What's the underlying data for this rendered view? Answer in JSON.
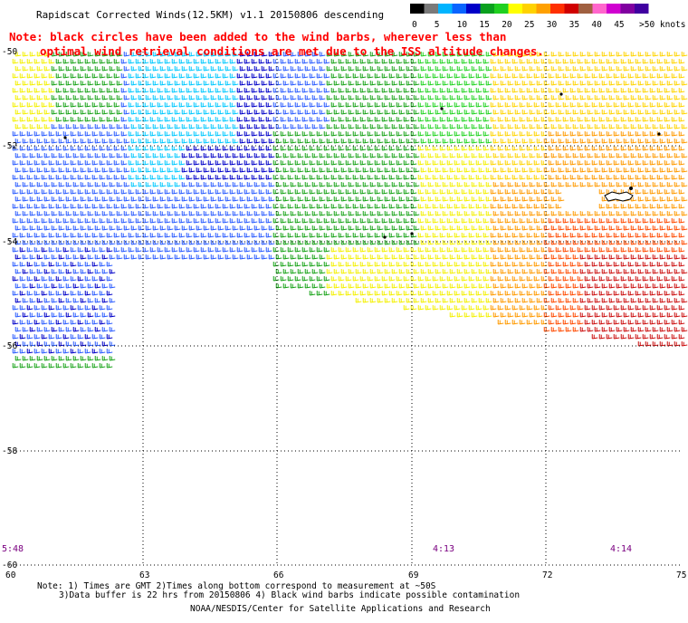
{
  "header": {
    "title": "Rapidscat Corrected Winds(12.5KM) v1.1 20150806 descending"
  },
  "legend": {
    "labels": [
      "0",
      "5",
      "10",
      "15",
      "20",
      "25",
      "30",
      "35",
      "40",
      "45",
      ">50 knots"
    ],
    "colors": [
      "#000000",
      "#7a7a7a",
      "#00b4ff",
      "#0a64ff",
      "#0000c8",
      "#0aa01e",
      "#20d020",
      "#ffff00",
      "#ffd200",
      "#ffa000",
      "#ff3000",
      "#d00000",
      "#a06040",
      "#ff66cc",
      "#d000d0",
      "#8000a0",
      "#4000a0"
    ]
  },
  "note": {
    "line1": "Note: black circles have been added to the wind barbs, wherever less than",
    "line2": "optimal wind retrieval conditions are met due to the ISS altitude changes."
  },
  "axes": {
    "lat_labels": [
      "-50",
      "-52",
      "-54",
      "-56",
      "-58",
      "-60"
    ],
    "lon_labels": [
      "60",
      "63",
      "66",
      "69",
      "72",
      "75"
    ]
  },
  "times": [
    "5:48",
    "4:13",
    "4:14"
  ],
  "footer": {
    "line1": "Note: 1) Times are GMT 2)Times along bottom correspond to measurement at ~50S",
    "line2": "3)Data buffer is 22 hrs from 20150806 4) Black wind barbs indicate possible contamination",
    "line3": "NOAA/NESDIS/Center for Satellite Applications and Research"
  },
  "speed_colors": {
    "s10": "#2a5cff",
    "s12": "#0000c8",
    "s14": "#19a319",
    "s16": "#21d321",
    "s20": "#f4f000",
    "s24": "#ffd400",
    "s28": "#ff9a00",
    "s32": "#ff4a00",
    "s36": "#cc1010",
    "s8": "#00c8ff"
  }
}
